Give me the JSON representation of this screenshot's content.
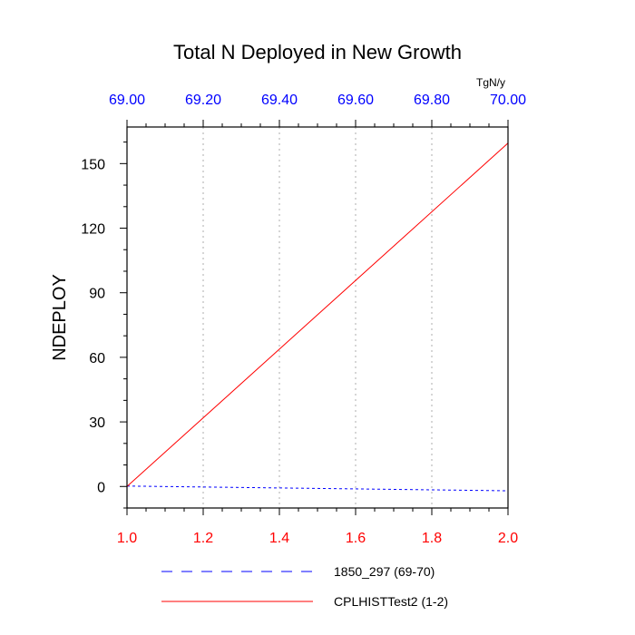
{
  "chart_data": {
    "type": "line",
    "title": "Total N Deployed in New Growth",
    "ylabel": "NDEPLOY",
    "units": "TgN/y",
    "ylim": [
      -10,
      167
    ],
    "grid": "vertical dotted",
    "legend_position": "bottom",
    "bottom_axis": {
      "range": [
        1.0,
        2.0
      ],
      "ticks": [
        1.0,
        1.2,
        1.4,
        1.6,
        1.8,
        2.0
      ],
      "tick_labels": [
        "1.0",
        "1.2",
        "1.4",
        "1.6",
        "1.8",
        "2.0"
      ],
      "color": "#ff0000"
    },
    "top_axis": {
      "range": [
        69.0,
        70.0
      ],
      "ticks": [
        69.0,
        69.2,
        69.4,
        69.6,
        69.8,
        70.0
      ],
      "tick_labels": [
        "69.00",
        "69.20",
        "69.40",
        "69.60",
        "69.80",
        "70.00"
      ],
      "color": "#0000ff"
    },
    "y_ticks": [
      0,
      30,
      60,
      90,
      120,
      150
    ],
    "y_tick_labels": [
      "0",
      "30",
      "60",
      "90",
      "120",
      "150"
    ],
    "series": [
      {
        "name": "1850_297 (69-70)",
        "axis": "top",
        "x": [
          69.0,
          70.0
        ],
        "y": [
          0.2,
          -2.0
        ],
        "color": "#0000ff",
        "dash": "dashed"
      },
      {
        "name": "CPLHISTTest2 (1-2)",
        "axis": "bottom",
        "x": [
          1.0,
          2.0
        ],
        "y": [
          0.0,
          159.5
        ],
        "color": "#ff0000",
        "dash": "solid"
      }
    ]
  }
}
